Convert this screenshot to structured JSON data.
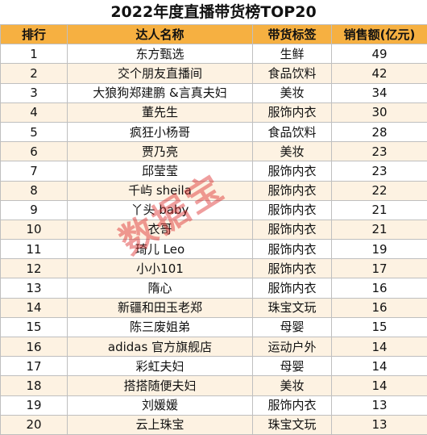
{
  "title": "2022年度直播带货榜TOP20",
  "headers": {
    "rank": "排行",
    "name": "达人名称",
    "tag": "带货标签",
    "sales": "销售额(亿元)"
  },
  "rows": [
    {
      "rank": "1",
      "name": "东方甄选",
      "tag": "生鲜",
      "sales": "49"
    },
    {
      "rank": "2",
      "name": "交个朋友直播间",
      "tag": "食品饮料",
      "sales": "42"
    },
    {
      "rank": "3",
      "name": "大狼狗郑建鹏 &言真夫妇",
      "tag": "美妆",
      "sales": "34"
    },
    {
      "rank": "4",
      "name": "董先生",
      "tag": "服饰内衣",
      "sales": "30"
    },
    {
      "rank": "5",
      "name": "疯狂小杨哥",
      "tag": "食品饮料",
      "sales": "28"
    },
    {
      "rank": "6",
      "name": "贾乃亮",
      "tag": "美妆",
      "sales": "23"
    },
    {
      "rank": "7",
      "name": "邱莹莹",
      "tag": "服饰内衣",
      "sales": "23"
    },
    {
      "rank": "8",
      "name": "千屿 sheila",
      "tag": "服饰内衣",
      "sales": "22"
    },
    {
      "rank": "9",
      "name": "丫头 baby",
      "tag": "服饰内衣",
      "sales": "21"
    },
    {
      "rank": "10",
      "name": "衣哥",
      "tag": "服饰内衣",
      "sales": "21"
    },
    {
      "rank": "11",
      "name": "琦儿 Leo",
      "tag": "服饰内衣",
      "sales": "19"
    },
    {
      "rank": "12",
      "name": "小小101",
      "tag": "服饰内衣",
      "sales": "17"
    },
    {
      "rank": "13",
      "name": "隋心",
      "tag": "服饰内衣",
      "sales": "16"
    },
    {
      "rank": "14",
      "name": "新疆和田玉老郑",
      "tag": "珠宝文玩",
      "sales": "16"
    },
    {
      "rank": "15",
      "name": "陈三废姐弟",
      "tag": "母婴",
      "sales": "15"
    },
    {
      "rank": "16",
      "name": "adidas 官方旗舰店",
      "tag": "运动户外",
      "sales": "14"
    },
    {
      "rank": "17",
      "name": "彩虹夫妇",
      "tag": "母婴",
      "sales": "14"
    },
    {
      "rank": "18",
      "name": "搭搭随便夫妇",
      "tag": "美妆",
      "sales": "14"
    },
    {
      "rank": "19",
      "name": "刘媛媛",
      "tag": "服饰内衣",
      "sales": "13"
    },
    {
      "rank": "20",
      "name": "云上珠宝",
      "tag": "珠宝文玩",
      "sales": "13"
    }
  ],
  "watermark": "数据宝"
}
